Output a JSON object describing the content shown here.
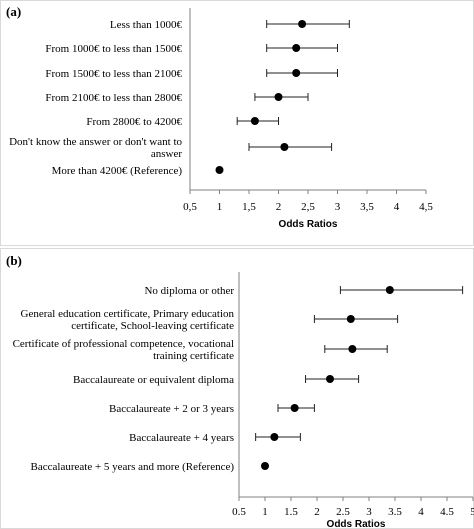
{
  "chart_data": [
    {
      "type": "scatter",
      "panel_label": "(a)",
      "xlabel": "Odds Ratios",
      "xlim": [
        0.5,
        4.5
      ],
      "x_ticks": [
        "0,5",
        "1",
        "1,5",
        "2",
        "2,5",
        "3",
        "3,5",
        "4",
        "4,5"
      ],
      "x_tick_values": [
        0.5,
        1,
        1.5,
        2,
        2.5,
        3,
        3.5,
        4,
        4.5
      ],
      "grid": false,
      "categories": [
        [
          "Less than 1000€"
        ],
        [
          "From 1000€ to less than 1500€"
        ],
        [
          "From 1500€ to less than 2100€"
        ],
        [
          "From 2100€ to less than 2800€"
        ],
        [
          "From 2800€ to 4200€"
        ],
        [
          "Don't know the answer or don't want to",
          "answer"
        ],
        [
          "More than 4200€ (Reference)"
        ]
      ],
      "or": [
        2.4,
        2.3,
        2.3,
        2.0,
        1.6,
        2.1,
        1.0
      ],
      "ci_low": [
        1.8,
        1.8,
        1.8,
        1.6,
        1.3,
        1.5,
        null
      ],
      "ci_high": [
        3.2,
        3.0,
        3.0,
        2.5,
        2.0,
        2.9,
        null
      ]
    },
    {
      "type": "scatter",
      "panel_label": "(b)",
      "xlabel": "Odds Ratios",
      "xlim": [
        0.5,
        5
      ],
      "x_ticks": [
        "0.5",
        "1",
        "1.5",
        "2",
        "2.5",
        "3",
        "3.5",
        "4",
        "4.5",
        "5"
      ],
      "x_tick_values": [
        0.5,
        1,
        1.5,
        2,
        2.5,
        3,
        3.5,
        4,
        4.5,
        5
      ],
      "grid": false,
      "categories": [
        [
          "No diploma or other"
        ],
        [
          "General education certificate, Primary education",
          "certificate, School-leaving certificate"
        ],
        [
          "Certificate of professional competence, vocational",
          "training certificate"
        ],
        [
          "Baccalaureate or equivalent diploma"
        ],
        [
          "Baccalaureate + 2 or 3 years"
        ],
        [
          "Baccalaureate + 4 years"
        ],
        [
          "Baccalaureate + 5 years and more (Reference)"
        ]
      ],
      "or": [
        3.4,
        2.65,
        2.68,
        2.25,
        1.57,
        1.18,
        1.0
      ],
      "ci_low": [
        2.45,
        1.95,
        2.15,
        1.78,
        1.25,
        0.82,
        null
      ],
      "ci_high": [
        4.8,
        3.55,
        3.35,
        2.8,
        1.95,
        1.68,
        null
      ]
    }
  ]
}
